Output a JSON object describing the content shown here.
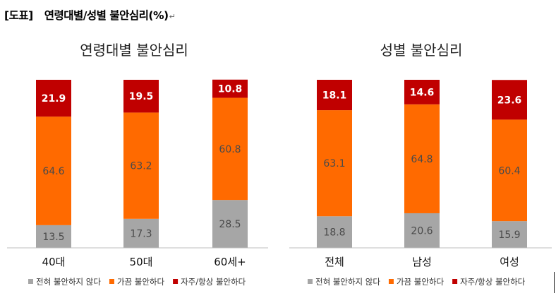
{
  "document": {
    "tag": "[도표]",
    "title": "연령대별/성별  불안심리(%)",
    "mark": "↵"
  },
  "chart_data": [
    {
      "type": "bar",
      "stacked": true,
      "title": "연령대별 불안심리",
      "categories": [
        "40대",
        "50대",
        "60세+"
      ],
      "series": [
        {
          "name": "전혀 불안하지 않다",
          "color": "#a6a6a6",
          "values": [
            13.5,
            17.3,
            28.5
          ]
        },
        {
          "name": "가끔 불안하다",
          "color": "#ff6a00",
          "values": [
            64.6,
            63.2,
            60.8
          ]
        },
        {
          "name": "자주/항상 불안하다",
          "color": "#c00000",
          "values": [
            21.9,
            19.5,
            10.8
          ]
        }
      ],
      "ylim": [
        0,
        100
      ],
      "legend": "bottom",
      "grid": false
    },
    {
      "type": "bar",
      "stacked": true,
      "title": "성별 불안심리",
      "categories": [
        "전체",
        "남성",
        "여성"
      ],
      "series": [
        {
          "name": "전혀 불안하지 않다",
          "color": "#a6a6a6",
          "values": [
            18.8,
            20.6,
            15.9
          ]
        },
        {
          "name": "가끔 불안하다",
          "color": "#ff6a00",
          "values": [
            63.1,
            64.8,
            60.4
          ]
        },
        {
          "name": "자주/항상 불안하다",
          "color": "#c00000",
          "values": [
            18.1,
            14.6,
            23.6
          ]
        }
      ],
      "ylim": [
        0,
        100
      ],
      "legend": "bottom",
      "grid": false
    }
  ]
}
